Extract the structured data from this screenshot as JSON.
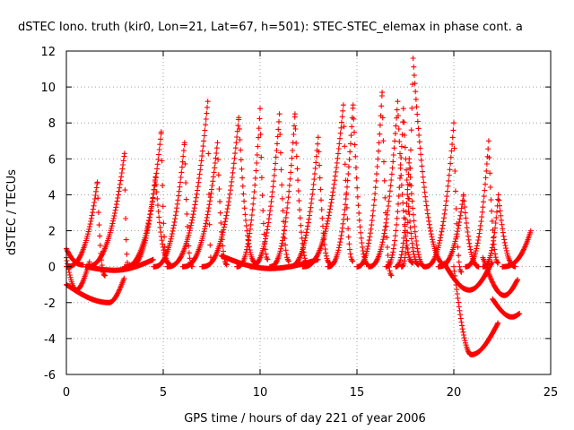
{
  "chart_data": {
    "type": "scatter",
    "title": "dSTEC Iono. truth (kir0, Lon=21, Lat=67, h=501): STEC-STEC_elemax in phase cont. a",
    "xlabel": "GPS time / hours of day 221 of year 2006",
    "ylabel": "dSTEC  / TECUs",
    "xlim": [
      0,
      25
    ],
    "ylim": [
      -6,
      12
    ],
    "xticks": [
      0,
      5,
      10,
      15,
      20,
      25
    ],
    "yticks": [
      -6,
      -4,
      -2,
      0,
      2,
      4,
      6,
      8,
      10,
      12
    ],
    "xtick_labels": [
      "0",
      "5",
      "10",
      "15",
      "20",
      "25"
    ],
    "ytick_labels": [
      "-6",
      "-4",
      "-2",
      "0",
      "2",
      "4",
      "6",
      "8",
      "10",
      "12"
    ],
    "grid": true,
    "legend": "none",
    "marker": "plus",
    "color": "#ff0000",
    "arcs": [
      {
        "t_start": 0.0,
        "t_peak": 1.6,
        "peak": 4.7,
        "t_end": 2.0,
        "end": -0.5
      },
      {
        "t_start": 0.0,
        "t_peak": 0.0,
        "peak": 1.0,
        "t_end": 0.9,
        "end": 0.1
      },
      {
        "t_start": 1.0,
        "t_peak": 3.0,
        "peak": 6.3,
        "t_end": 3.2,
        "end": 0.0
      },
      {
        "t_start": 3.0,
        "t_peak": 4.9,
        "peak": 7.5,
        "t_end": 5.2,
        "end": 0.3
      },
      {
        "t_start": 3.2,
        "t_peak": 4.6,
        "peak": 5.0,
        "t_end": 5.4,
        "end": 0.1
      },
      {
        "t_start": 4.5,
        "t_peak": 6.1,
        "peak": 6.9,
        "t_end": 6.5,
        "end": 0.0
      },
      {
        "t_start": 5.2,
        "t_peak": 7.3,
        "peak": 9.2,
        "t_end": 7.5,
        "end": 0.2
      },
      {
        "t_start": 6.0,
        "t_peak": 7.8,
        "peak": 6.9,
        "t_end": 8.3,
        "end": 0.1
      },
      {
        "t_start": 7.0,
        "t_peak": 8.9,
        "peak": 8.3,
        "t_end": 9.8,
        "end": 0.2
      },
      {
        "t_start": 8.8,
        "t_peak": 10.0,
        "peak": 8.8,
        "t_end": 10.4,
        "end": 0.4
      },
      {
        "t_start": 9.5,
        "t_peak": 11.0,
        "peak": 8.5,
        "t_end": 11.5,
        "end": 0.3
      },
      {
        "t_start": 10.5,
        "t_peak": 11.8,
        "peak": 8.5,
        "t_end": 12.5,
        "end": 0.1
      },
      {
        "t_start": 11.5,
        "t_peak": 13.0,
        "peak": 7.2,
        "t_end": 13.6,
        "end": 0.2
      },
      {
        "t_start": 12.2,
        "t_peak": 14.3,
        "peak": 9.0,
        "t_end": 14.8,
        "end": 0.3
      },
      {
        "t_start": 13.5,
        "t_peak": 14.8,
        "peak": 9.0,
        "t_end": 15.6,
        "end": 0.1
      },
      {
        "t_start": 15.0,
        "t_peak": 16.3,
        "peak": 9.7,
        "t_end": 16.8,
        "end": -0.5
      },
      {
        "t_start": 15.6,
        "t_peak": 17.1,
        "peak": 9.2,
        "t_end": 17.9,
        "end": 0.2
      },
      {
        "t_start": 16.5,
        "t_peak": 17.4,
        "peak": 8.8,
        "t_end": 18.2,
        "end": 0.1
      },
      {
        "t_start": 17.0,
        "t_peak": 17.7,
        "peak": 6.0,
        "t_end": 18.5,
        "end": 0.0
      },
      {
        "t_start": 17.3,
        "t_peak": 17.9,
        "peak": 11.6,
        "t_end": 19.6,
        "end": 0.1
      },
      {
        "t_start": 18.5,
        "t_peak": 20.0,
        "peak": 8.0,
        "t_end": 20.4,
        "end": -0.3
      },
      {
        "t_start": 19.2,
        "t_peak": 20.5,
        "peak": 4.0,
        "t_end": 21.3,
        "end": 0.0
      },
      {
        "t_start": 20.6,
        "t_peak": 21.8,
        "peak": 7.0,
        "t_end": 22.3,
        "end": 0.2
      },
      {
        "t_start": 21.5,
        "t_peak": 22.3,
        "peak": 4.0,
        "t_end": 23.2,
        "end": 0.0
      },
      {
        "t_start": 22.5,
        "t_peak": 24.0,
        "peak": 2.1,
        "t_end": 24.0,
        "end": 2.1
      }
    ],
    "valleys": [
      {
        "t_start": 0.0,
        "start": -1.0,
        "t_min": 2.2,
        "min": -2.0,
        "t_end": 3.0,
        "end": -0.6
      },
      {
        "t_start": 0.0,
        "start": 0.5,
        "t_min": 0.5,
        "min": -1.3,
        "t_end": 1.2,
        "end": 0.3
      },
      {
        "t_start": 1.0,
        "start": 0.0,
        "t_min": 2.5,
        "min": -0.2,
        "t_end": 4.5,
        "end": 0.4
      },
      {
        "t_start": 8.0,
        "start": 0.6,
        "t_min": 10.5,
        "min": -0.1,
        "t_end": 13.0,
        "end": 0.4
      },
      {
        "t_start": 19.5,
        "start": 0.2,
        "t_min": 20.8,
        "min": -1.3,
        "t_end": 22.0,
        "end": 0.3
      },
      {
        "t_start": 20.0,
        "start": 0.0,
        "t_min": 20.9,
        "min": -4.9,
        "t_end": 22.3,
        "end": -3.1
      },
      {
        "t_start": 21.5,
        "start": 0.5,
        "t_min": 22.6,
        "min": -1.6,
        "t_end": 23.3,
        "end": -0.7
      },
      {
        "t_start": 22.0,
        "start": -1.8,
        "t_min": 23.0,
        "min": -2.8,
        "t_end": 23.4,
        "end": -2.6
      }
    ]
  }
}
